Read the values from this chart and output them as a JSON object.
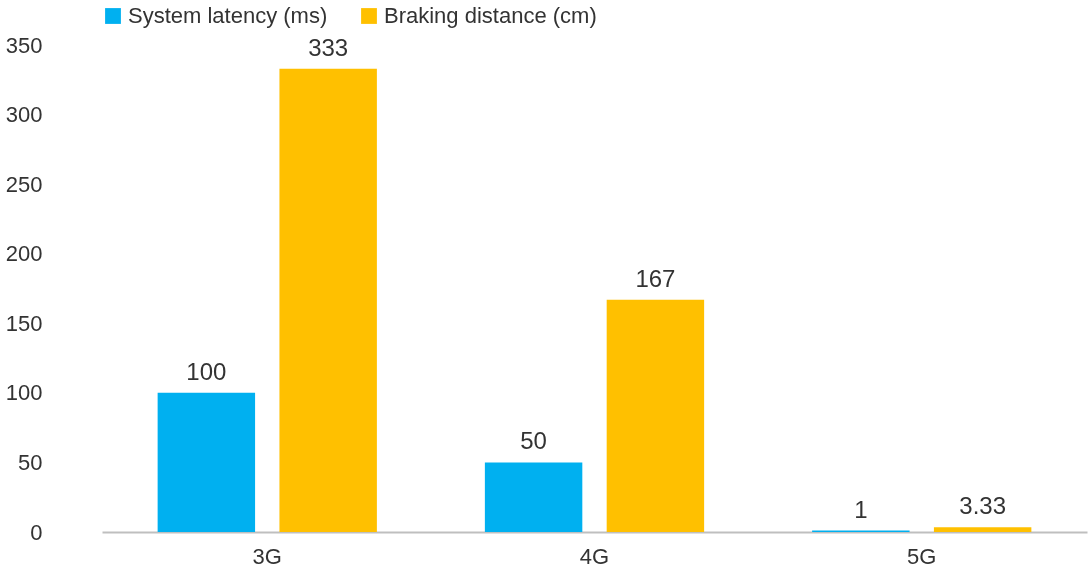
{
  "chart_data": {
    "type": "bar",
    "categories": [
      "3G",
      "4G",
      "5G"
    ],
    "series": [
      {
        "name": "System latency (ms)",
        "color": "#00b0f0",
        "values": [
          100,
          50,
          1
        ]
      },
      {
        "name": "Braking distance (cm)",
        "color": "#ffc000",
        "values": [
          333,
          167,
          3.33
        ]
      }
    ],
    "ylim": [
      0,
      350
    ],
    "yticks": [
      0,
      50,
      100,
      150,
      200,
      250,
      300,
      350
    ],
    "grid": false,
    "legend": "top",
    "data_labels": true
  }
}
